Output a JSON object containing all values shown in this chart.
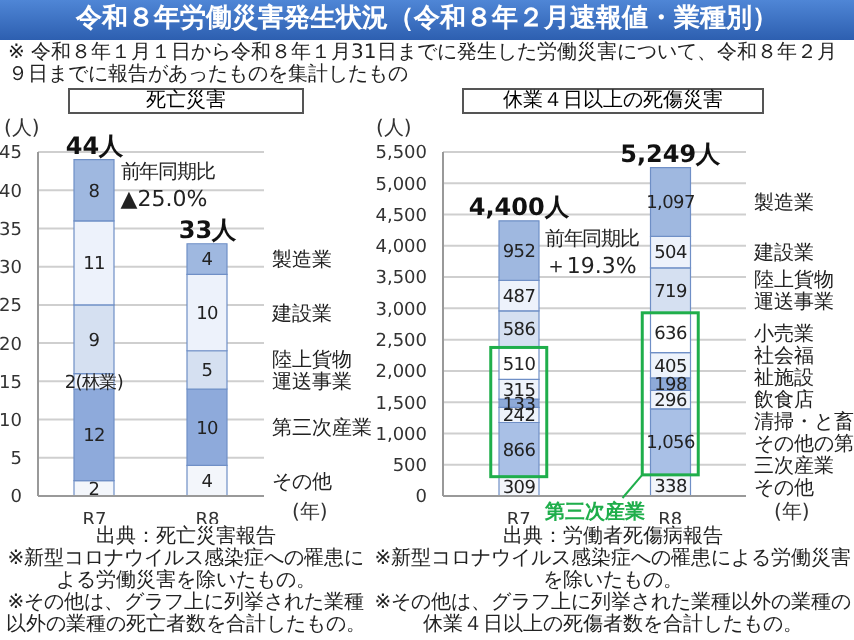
{
  "chart_data": [
    {
      "type": "other",
      "title": "令和８年労働災害発生状況（令和８年２月速報値・業種別）",
      "subtitle": "※ 令和８年１月１日から令和８年１月31日までに発生した労働災害について、令和８年２月９日までに報告があったものを集計したもの"
    },
    {
      "type": "bar",
      "title": "死亡災害",
      "ylabel": "(人)",
      "xlabel": "(年)",
      "categories": [
        "R7",
        "R8"
      ],
      "stacked": true,
      "data_labels": true,
      "grid": "y",
      "ylim": [
        0,
        45
      ],
      "yticks": [
        0,
        5,
        10,
        15,
        20,
        25,
        30,
        35,
        40,
        45
      ],
      "totals": [
        "44人",
        "33人"
      ],
      "series": [
        {
          "name": "その他",
          "color": "#f3f6fb",
          "values": [
            2,
            4
          ]
        },
        {
          "name": "第三次産業",
          "color": "#8eaadb",
          "values": [
            12,
            10
          ]
        },
        {
          "color": "#eef3fb",
          "values": [
            2,
            null
          ],
          "value_labels": [
            "2(林業)",
            null
          ]
        },
        {
          "name": "陸上貨物運送事業",
          "color": "#d5e0f1",
          "values": [
            9,
            5
          ]
        },
        {
          "name": "建設業",
          "color": "#edf2fb",
          "values": [
            11,
            10
          ]
        },
        {
          "name": "製造業",
          "color": "#9fb8e0",
          "values": [
            8,
            4
          ]
        }
      ],
      "annotations": [
        "前年同期比",
        "▲25.0%",
        "出典：死亡災害報告",
        "※新型コロナウイルス感染症への罹患による労働災害を除いたもの。",
        "※その他は、グラフ上に列挙された業種以外の業種の死亡者数を合計したもの。"
      ]
    },
    {
      "type": "bar",
      "title": "休業４日以上の死傷災害",
      "ylabel": "(人)",
      "xlabel": "(年)",
      "categories": [
        "R7",
        "R8"
      ],
      "stacked": true,
      "data_labels": true,
      "grid": "y",
      "ylim": [
        0,
        5500
      ],
      "yticks": [
        0,
        500,
        {
          "value": 1000,
          "label": "1,000"
        },
        {
          "value": 1500,
          "label": "1,500"
        },
        {
          "value": 2000,
          "label": "2,000"
        },
        {
          "value": 2500,
          "label": "2,500"
        },
        {
          "value": 3000,
          "label": "3,000"
        },
        {
          "value": 3500,
          "label": "3,500"
        },
        {
          "value": 4000,
          "label": "4,000"
        },
        {
          "value": 4500,
          "label": "4,500"
        },
        {
          "value": 5000,
          "label": "5,000"
        },
        {
          "value": 5500,
          "label": "5,500"
        }
      ],
      "totals": [
        "4,400人",
        "5,249人"
      ],
      "series": [
        {
          "name": "その他",
          "color": "#f3f6fb",
          "values": [
            309,
            338
          ]
        },
        {
          "name": "その他の第三次産業",
          "color": "#a9c0e6",
          "values": [
            866,
            1056
          ],
          "value_labels": [
            "866",
            "1,056"
          ]
        },
        {
          "name": "清掃・と畜",
          "color": "#eef3fb",
          "values": [
            242,
            296
          ]
        },
        {
          "name": "飲食店",
          "color": "#8eaad8",
          "values": [
            133,
            198
          ]
        },
        {
          "name": "社会福祉施設",
          "color": "#eef3fb",
          "values": [
            315,
            405
          ]
        },
        {
          "name": "小売業",
          "color": "#ffffff",
          "values": [
            510,
            636
          ]
        },
        {
          "name": "陸上貨物運送事業",
          "color": "#d5e0f1",
          "values": [
            586,
            719
          ]
        },
        {
          "name": "建設業",
          "color": "#edf2fb",
          "values": [
            487,
            504
          ]
        },
        {
          "name": "製造業",
          "color": "#9fb8e0",
          "values": [
            952,
            1097
          ],
          "value_labels": [
            "952",
            "1,097"
          ]
        }
      ],
      "annotations": [
        "前年同期比",
        "＋19.3%",
        "出典：労働者死傷病報告",
        "※新型コロナウイルス感染症への罹患による労働災害を除いたもの。",
        "※その他は、グラフ上に列挙された業種以外の業種の休業４日以上の死傷者数を合計したもの。",
        "第三次産業"
      ]
    }
  ]
}
